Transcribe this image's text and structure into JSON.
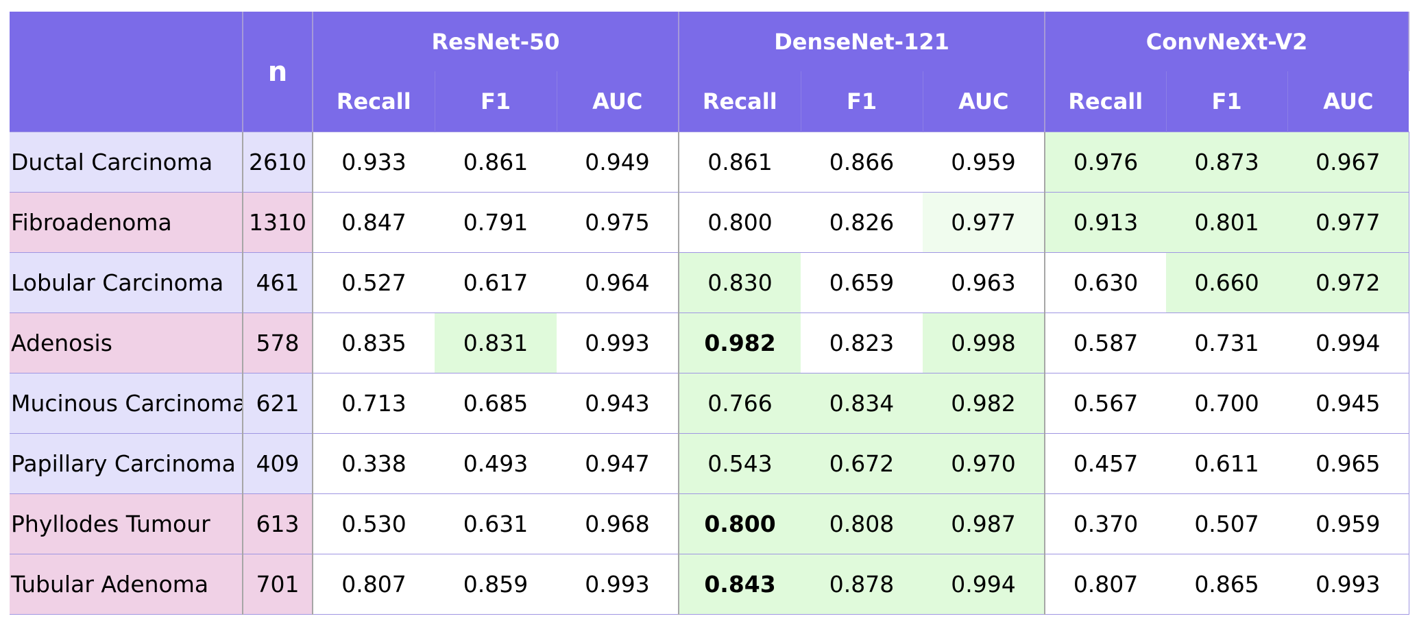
{
  "table": {
    "n_header": "n",
    "models": [
      {
        "name": "ResNet-50",
        "metrics": [
          "Recall",
          "F1",
          "AUC"
        ]
      },
      {
        "name": "DenseNet-121",
        "metrics": [
          "Recall",
          "F1",
          "AUC"
        ]
      },
      {
        "name": "ConvNeXt-V2",
        "metrics": [
          "Recall",
          "F1",
          "AUC"
        ]
      }
    ],
    "rows": [
      {
        "label": "Ductal Carcinoma",
        "n": "2610",
        "row_color": "#e3e1fb",
        "values": [
          "0.933",
          "0.861",
          "0.949",
          "0.861",
          "0.866",
          "0.959",
          "0.976",
          "0.873",
          "0.967"
        ],
        "highlight": [
          null,
          null,
          null,
          null,
          null,
          null,
          "#e0fadb",
          "#e0fadb",
          "#e0fadb"
        ],
        "bold": [
          false,
          false,
          false,
          false,
          false,
          false,
          false,
          false,
          false
        ]
      },
      {
        "label": "Fibroadenoma",
        "n": "1310",
        "row_color": "#f0d1e6",
        "values": [
          "0.847",
          "0.791",
          "0.975",
          "0.800",
          "0.826",
          "0.977",
          "0.913",
          "0.801",
          "0.977"
        ],
        "highlight": [
          null,
          null,
          null,
          null,
          null,
          "#f0fcee",
          "#e0fadb",
          "#e0fadb",
          "#e0fadb"
        ],
        "bold": [
          false,
          false,
          false,
          false,
          false,
          false,
          false,
          false,
          false
        ]
      },
      {
        "label": "Lobular Carcinoma",
        "n": "461",
        "row_color": "#e3e1fb",
        "values": [
          "0.527",
          "0.617",
          "0.964",
          "0.830",
          "0.659",
          "0.963",
          "0.630",
          "0.660",
          "0.972"
        ],
        "highlight": [
          null,
          null,
          null,
          "#e0fadb",
          null,
          null,
          null,
          "#e0fadb",
          "#e0fadb"
        ],
        "bold": [
          false,
          false,
          false,
          false,
          false,
          false,
          false,
          false,
          false
        ]
      },
      {
        "label": "Adenosis",
        "n": "578",
        "row_color": "#f0d1e6",
        "values": [
          "0.835",
          "0.831",
          "0.993",
          "0.982",
          "0.823",
          "0.998",
          "0.587",
          "0.731",
          "0.994"
        ],
        "highlight": [
          null,
          "#e0fadb",
          null,
          "#e0fadb",
          null,
          "#e0fadb",
          null,
          null,
          null
        ],
        "bold": [
          false,
          false,
          false,
          true,
          false,
          false,
          false,
          false,
          false
        ]
      },
      {
        "label": "Mucinous Carcinoma",
        "n": "621",
        "row_color": "#e3e1fb",
        "values": [
          "0.713",
          "0.685",
          "0.943",
          "0.766",
          "0.834",
          "0.982",
          "0.567",
          "0.700",
          "0.945"
        ],
        "highlight": [
          null,
          null,
          null,
          "#e0fadb",
          "#e0fadb",
          "#e0fadb",
          null,
          null,
          null
        ],
        "bold": [
          false,
          false,
          false,
          false,
          false,
          false,
          false,
          false,
          false
        ]
      },
      {
        "label": "Papillary Carcinoma",
        "n": "409",
        "row_color": "#e3e1fb",
        "values": [
          "0.338",
          "0.493",
          "0.947",
          "0.543",
          "0.672",
          "0.970",
          "0.457",
          "0.611",
          "0.965"
        ],
        "highlight": [
          null,
          null,
          null,
          "#e0fadb",
          "#e0fadb",
          "#e0fadb",
          null,
          null,
          null
        ],
        "bold": [
          false,
          false,
          false,
          false,
          false,
          false,
          false,
          false,
          false
        ]
      },
      {
        "label": "Phyllodes Tumour",
        "n": "613",
        "row_color": "#f0d1e6",
        "values": [
          "0.530",
          "0.631",
          "0.968",
          "0.800",
          "0.808",
          "0.987",
          "0.370",
          "0.507",
          "0.959"
        ],
        "highlight": [
          null,
          null,
          null,
          "#e0fadb",
          "#e0fadb",
          "#e0fadb",
          null,
          null,
          null
        ],
        "bold": [
          false,
          false,
          false,
          true,
          false,
          false,
          false,
          false,
          false
        ]
      },
      {
        "label": "Tubular Adenoma",
        "n": "701",
        "row_color": "#f0d1e6",
        "values": [
          "0.807",
          "0.859",
          "0.993",
          "0.843",
          "0.878",
          "0.994",
          "0.807",
          "0.865",
          "0.993"
        ],
        "highlight": [
          null,
          null,
          null,
          "#e0fadb",
          "#e0fadb",
          "#e0fadb",
          null,
          null,
          null
        ],
        "bold": [
          false,
          false,
          false,
          true,
          false,
          false,
          false,
          false,
          false
        ]
      }
    ]
  },
  "colors": {
    "header_bg": "#7b6be8",
    "header_text": "#ffffff",
    "highlight_green": "#e0fadb",
    "highlight_green_light": "#f0fcee",
    "row_lavender": "#e3e1fb",
    "row_pink": "#f0d1e6"
  }
}
